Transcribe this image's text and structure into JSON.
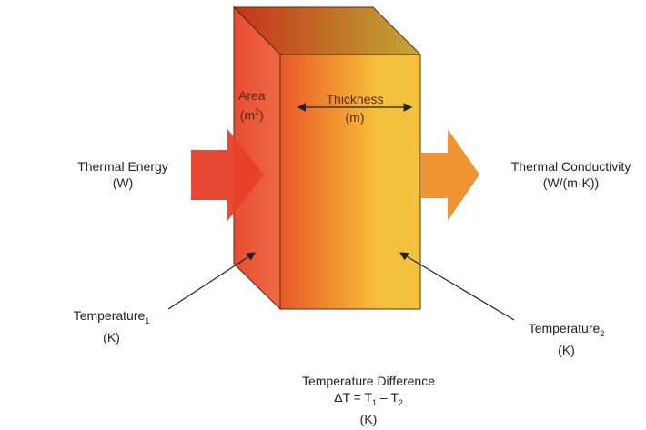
{
  "labels": {
    "area": "Area",
    "area_unit_base": "(m",
    "area_unit_sup": "2",
    "area_unit_end": ")",
    "thickness": "Thickness",
    "thickness_unit": "(m)",
    "thermal_energy": "Thermal Energy",
    "thermal_energy_unit": "(W)",
    "thermal_conductivity": "Thermal Conductivity",
    "thermal_conductivity_unit": "(W/(m·K))",
    "temp1": "Temperature",
    "temp1_sub": "1",
    "temp1_unit": "(K)",
    "temp2": "Temperature",
    "temp2_sub": "2",
    "temp2_unit": "(K)",
    "diff_title": "Temperature Difference",
    "diff_formula_a": "ΔT = T",
    "diff_formula_sub1": "1",
    "diff_formula_b": " – T",
    "diff_formula_sub2": "2",
    "diff_unit": "(K)"
  },
  "colors": {
    "hot": "#e8402a",
    "warm": "#f07a2a",
    "cool": "#f3c43c",
    "out_arrow": "#ee9433"
  }
}
